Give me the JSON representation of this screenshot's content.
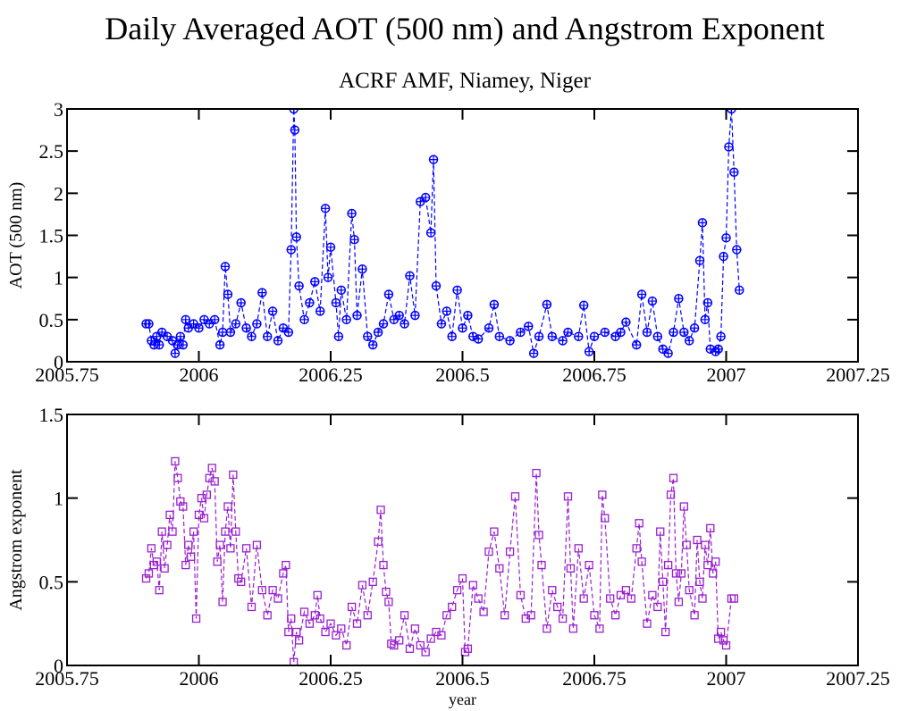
{
  "chart_data": [
    {
      "type": "line",
      "title": "Daily Averaged AOT (500 nm) and Angstrom Exponent",
      "subtitle": "ACRF AMF, Niamey, Niger",
      "ylabel": "AOT (500 nm)",
      "color": "#0000ff",
      "marker": "circle-plus",
      "linestyle": "dashed",
      "xlim": [
        2005.75,
        2007.25
      ],
      "xticks": [
        2005.75,
        2006,
        2006.25,
        2006.5,
        2006.75,
        2007,
        2007.25
      ],
      "ylim": [
        0,
        3
      ],
      "yticks": [
        0,
        0.5,
        1,
        1.5,
        2,
        2.5,
        3
      ],
      "x": [
        2005.9,
        2005.905,
        2005.91,
        2005.915,
        2005.92,
        2005.925,
        2005.93,
        2005.94,
        2005.95,
        2005.955,
        2005.96,
        2005.965,
        2005.97,
        2005.975,
        2005.98,
        2005.99,
        2006.0,
        2006.01,
        2006.02,
        2006.03,
        2006.04,
        2006.045,
        2006.05,
        2006.055,
        2006.06,
        2006.07,
        2006.08,
        2006.09,
        2006.1,
        2006.11,
        2006.12,
        2006.13,
        2006.14,
        2006.15,
        2006.16,
        2006.17,
        2006.175,
        2006.18,
        2006.182,
        2006.185,
        2006.19,
        2006.2,
        2006.21,
        2006.22,
        2006.23,
        2006.24,
        2006.245,
        2006.25,
        2006.26,
        2006.265,
        2006.27,
        2006.28,
        2006.29,
        2006.295,
        2006.3,
        2006.31,
        2006.32,
        2006.33,
        2006.34,
        2006.35,
        2006.36,
        2006.37,
        2006.38,
        2006.39,
        2006.4,
        2006.41,
        2006.42,
        2006.43,
        2006.44,
        2006.445,
        2006.45,
        2006.46,
        2006.47,
        2006.48,
        2006.49,
        2006.5,
        2006.51,
        2006.52,
        2006.53,
        2006.55,
        2006.56,
        2006.57,
        2006.59,
        2006.61,
        2006.625,
        2006.635,
        2006.645,
        2006.66,
        2006.67,
        2006.69,
        2006.7,
        2006.72,
        2006.73,
        2006.74,
        2006.75,
        2006.77,
        2006.79,
        2006.8,
        2006.81,
        2006.83,
        2006.84,
        2006.85,
        2006.86,
        2006.87,
        2006.88,
        2006.89,
        2006.9,
        2006.91,
        2006.92,
        2006.93,
        2006.94,
        2006.95,
        2006.955,
        2006.96,
        2006.965,
        2006.97,
        2006.98,
        2006.985,
        2006.99,
        2006.995,
        2007.0,
        2007.005,
        2007.01,
        2007.015,
        2007.02,
        2007.025
      ],
      "values": [
        0.45,
        0.45,
        0.25,
        0.2,
        0.3,
        0.2,
        0.35,
        0.3,
        0.25,
        0.1,
        0.2,
        0.3,
        0.2,
        0.5,
        0.4,
        0.45,
        0.4,
        0.5,
        0.45,
        0.5,
        0.2,
        0.35,
        1.13,
        0.8,
        0.35,
        0.45,
        0.7,
        0.4,
        0.3,
        0.45,
        0.82,
        0.3,
        0.6,
        0.25,
        0.4,
        0.35,
        1.33,
        3,
        2.75,
        1.48,
        0.9,
        0.5,
        0.7,
        0.95,
        0.6,
        1.82,
        1.0,
        1.36,
        0.7,
        0.3,
        0.85,
        0.5,
        1.76,
        1.45,
        0.55,
        1.1,
        0.3,
        0.2,
        0.35,
        0.45,
        0.8,
        0.5,
        0.55,
        0.45,
        1.02,
        0.55,
        1.9,
        1.95,
        1.53,
        2.4,
        0.9,
        0.45,
        0.6,
        0.3,
        0.85,
        0.4,
        0.55,
        0.3,
        0.27,
        0.4,
        0.68,
        0.3,
        0.25,
        0.35,
        0.42,
        0.1,
        0.3,
        0.68,
        0.3,
        0.25,
        0.35,
        0.3,
        0.67,
        0.12,
        0.3,
        0.35,
        0.3,
        0.35,
        0.47,
        0.2,
        0.8,
        0.35,
        0.72,
        0.3,
        0.15,
        0.1,
        0.35,
        0.75,
        0.35,
        0.25,
        0.4,
        1.2,
        1.65,
        0.5,
        0.7,
        0.15,
        0.12,
        0.15,
        0.3,
        1.25,
        1.47,
        2.55,
        3,
        2.25,
        1.33,
        0.85
      ]
    },
    {
      "type": "line",
      "xlabel": "year",
      "ylabel": "Angstrom exponent",
      "color": "#9a1fd0",
      "marker": "square",
      "linestyle": "dashed",
      "xlim": [
        2005.75,
        2007.25
      ],
      "xticks": [
        2005.75,
        2006,
        2006.25,
        2006.5,
        2006.75,
        2007,
        2007.25
      ],
      "ylim": [
        0,
        1.5
      ],
      "yticks": [
        0,
        0.5,
        1,
        1.5
      ],
      "x": [
        2005.9,
        2005.905,
        2005.91,
        2005.915,
        2005.92,
        2005.925,
        2005.93,
        2005.935,
        2005.94,
        2005.945,
        2005.95,
        2005.955,
        2005.96,
        2005.965,
        2005.97,
        2005.975,
        2005.98,
        2005.985,
        2005.99,
        2005.995,
        2006.0,
        2006.005,
        2006.01,
        2006.015,
        2006.02,
        2006.025,
        2006.03,
        2006.035,
        2006.04,
        2006.045,
        2006.05,
        2006.055,
        2006.06,
        2006.065,
        2006.07,
        2006.075,
        2006.08,
        2006.09,
        2006.1,
        2006.11,
        2006.12,
        2006.13,
        2006.14,
        2006.15,
        2006.16,
        2006.165,
        2006.17,
        2006.175,
        2006.18,
        2006.185,
        2006.19,
        2006.2,
        2006.21,
        2006.22,
        2006.225,
        2006.23,
        2006.24,
        2006.25,
        2006.26,
        2006.27,
        2006.28,
        2006.29,
        2006.3,
        2006.31,
        2006.32,
        2006.33,
        2006.34,
        2006.345,
        2006.35,
        2006.355,
        2006.36,
        2006.365,
        2006.37,
        2006.38,
        2006.39,
        2006.4,
        2006.41,
        2006.42,
        2006.43,
        2006.44,
        2006.45,
        2006.46,
        2006.47,
        2006.48,
        2006.49,
        2006.5,
        2006.505,
        2006.51,
        2006.52,
        2006.53,
        2006.54,
        2006.55,
        2006.56,
        2006.57,
        2006.58,
        2006.59,
        2006.6,
        2006.61,
        2006.62,
        2006.63,
        2006.64,
        2006.645,
        2006.65,
        2006.66,
        2006.67,
        2006.68,
        2006.69,
        2006.7,
        2006.705,
        2006.71,
        2006.72,
        2006.73,
        2006.74,
        2006.75,
        2006.76,
        2006.765,
        2006.77,
        2006.78,
        2006.79,
        2006.8,
        2006.81,
        2006.82,
        2006.83,
        2006.835,
        2006.84,
        2006.85,
        2006.86,
        2006.87,
        2006.875,
        2006.88,
        2006.885,
        2006.89,
        2006.895,
        2006.9,
        2006.905,
        2006.91,
        2006.915,
        2006.92,
        2006.925,
        2006.93,
        2006.94,
        2006.945,
        2006.95,
        2006.955,
        2006.96,
        2006.965,
        2006.97,
        2006.975,
        2006.98,
        2006.985,
        2006.99,
        2006.995,
        2007.0,
        2007.01,
        2007.015
      ],
      "values": [
        0.52,
        0.55,
        0.7,
        0.6,
        0.62,
        0.45,
        0.8,
        0.58,
        0.72,
        0.9,
        0.8,
        1.22,
        1.12,
        0.98,
        0.95,
        0.6,
        0.72,
        0.65,
        0.8,
        0.28,
        0.9,
        1.0,
        0.88,
        1.02,
        1.12,
        1.18,
        1.1,
        0.62,
        0.72,
        0.38,
        0.8,
        0.95,
        0.7,
        1.14,
        0.8,
        0.52,
        0.5,
        0.7,
        0.35,
        0.72,
        0.45,
        0.3,
        0.45,
        0.4,
        0.55,
        0.6,
        0.2,
        0.28,
        0.02,
        0.2,
        0.15,
        0.32,
        0.25,
        0.3,
        0.42,
        0.28,
        0.2,
        0.25,
        0.18,
        0.22,
        0.12,
        0.35,
        0.25,
        0.48,
        0.3,
        0.5,
        0.74,
        0.93,
        0.6,
        0.44,
        0.38,
        0.13,
        0.12,
        0.15,
        0.3,
        0.1,
        0.22,
        0.12,
        0.08,
        0.16,
        0.2,
        0.18,
        0.3,
        0.35,
        0.45,
        0.52,
        0.08,
        0.1,
        0.48,
        0.4,
        0.32,
        0.68,
        0.8,
        0.58,
        0.3,
        0.68,
        1.01,
        0.42,
        0.28,
        0.3,
        1.15,
        0.78,
        0.6,
        0.22,
        0.45,
        0.35,
        0.28,
        1.01,
        0.58,
        0.22,
        0.7,
        0.4,
        0.6,
        0.3,
        0.22,
        1.02,
        0.88,
        0.4,
        0.3,
        0.42,
        0.45,
        0.4,
        0.7,
        0.85,
        0.62,
        0.25,
        0.42,
        0.35,
        0.8,
        0.5,
        0.2,
        0.6,
        1.02,
        1.12,
        0.55,
        0.38,
        0.55,
        0.95,
        0.72,
        0.45,
        0.3,
        0.75,
        0.5,
        0.4,
        0.72,
        0.6,
        0.82,
        0.55,
        0.62,
        0.16,
        0.2,
        0.15,
        0.12,
        0.4,
        0.4
      ]
    }
  ]
}
